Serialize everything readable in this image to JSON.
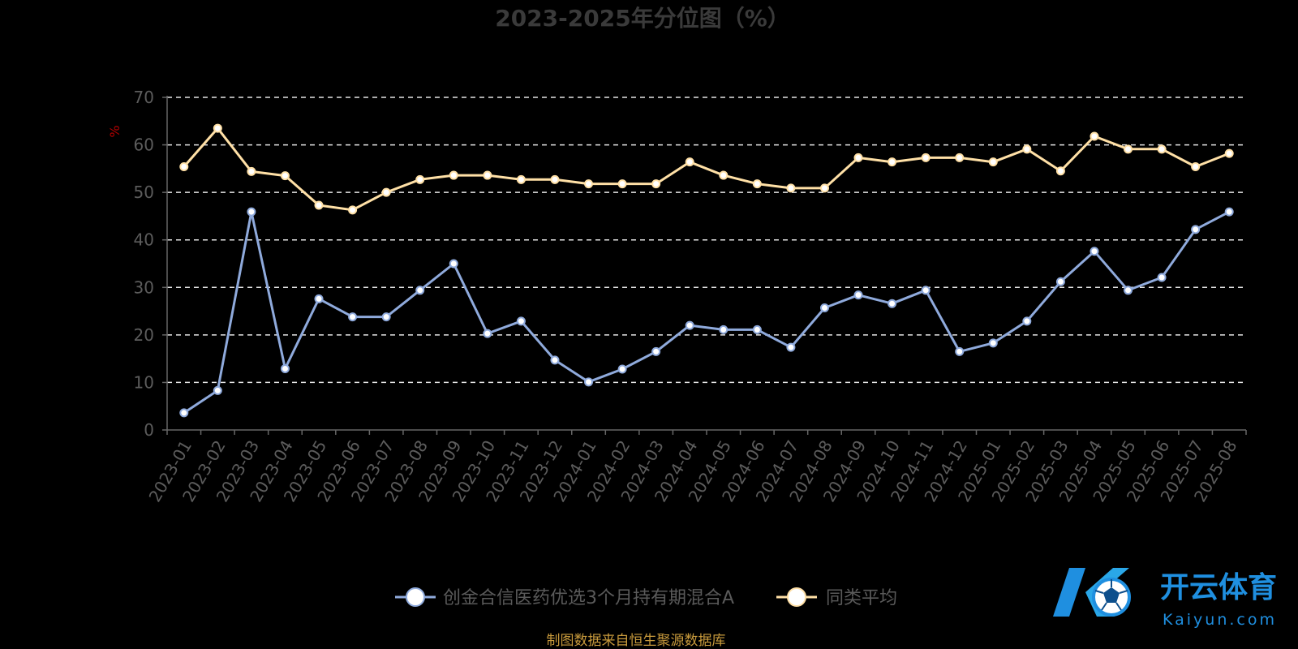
{
  "chart_data": {
    "type": "line",
    "title": "2023-2025年分位图（%）",
    "ylabel": "%",
    "ylim": [
      0,
      70
    ],
    "yticks": [
      0,
      10,
      20,
      30,
      40,
      50,
      60,
      70
    ],
    "grid": true,
    "legend_position": "bottom",
    "categories": [
      "2023-01",
      "2023-02",
      "2023-03",
      "2023-04",
      "2023-05",
      "2023-06",
      "2023-07",
      "2023-08",
      "2023-09",
      "2023-10",
      "2023-11",
      "2023-12",
      "2024-01",
      "2024-02",
      "2024-03",
      "2024-04",
      "2024-05",
      "2024-06",
      "2024-07",
      "2024-08",
      "2024-09",
      "2024-10",
      "2024-11",
      "2024-12",
      "2025-01",
      "2025-02",
      "2025-03",
      "2025-04",
      "2025-05",
      "2025-06",
      "2025-07",
      "2025-08"
    ],
    "series": [
      {
        "name": "创金合信医药优选3个月持有期混合A",
        "color": "#8faadc",
        "values": [
          3.6,
          8.3,
          45.9,
          12.9,
          27.6,
          23.8,
          23.8,
          29.4,
          35.0,
          20.3,
          22.9,
          14.7,
          10.1,
          12.8,
          16.5,
          22.0,
          21.1,
          21.1,
          17.4,
          25.7,
          28.4,
          26.6,
          29.4,
          16.5,
          18.3,
          22.9,
          31.2,
          37.6,
          29.4,
          32.1,
          42.2,
          45.9
        ]
      },
      {
        "name": "同类平均",
        "color": "#ffe0a6",
        "values": [
          55.4,
          63.5,
          54.4,
          53.5,
          47.3,
          46.3,
          50.0,
          52.7,
          53.6,
          53.6,
          52.7,
          52.7,
          51.8,
          51.8,
          51.8,
          56.4,
          53.6,
          51.8,
          50.9,
          50.9,
          57.3,
          56.4,
          57.3,
          57.3,
          56.4,
          59.1,
          54.5,
          61.8,
          59.1,
          59.1,
          55.4,
          58.2
        ]
      }
    ]
  },
  "source_note": "制图数据来自恒生聚源数据库",
  "watermark": {
    "cn": "开云体育",
    "en": "Kaiyun.com"
  }
}
